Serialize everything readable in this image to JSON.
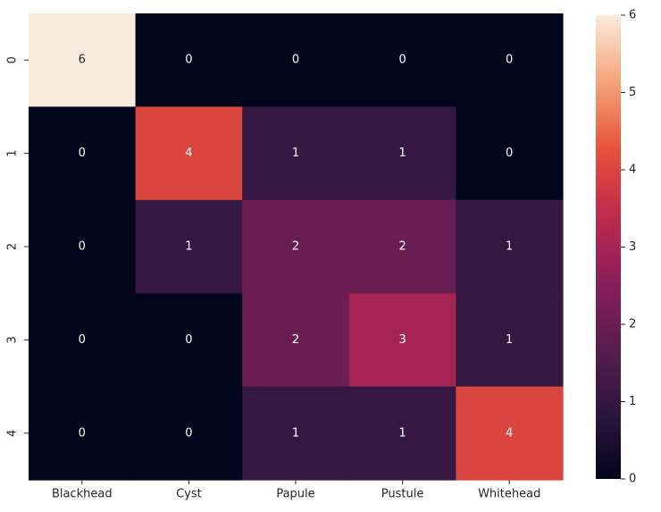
{
  "chart_data": {
    "type": "heatmap",
    "title": "",
    "xlabel": "",
    "ylabel": "",
    "x_categories": [
      "Blackhead",
      "Cyst",
      "Papule",
      "Pustule",
      "Whitehead"
    ],
    "y_categories": [
      "0",
      "1",
      "2",
      "3",
      "4"
    ],
    "values": [
      [
        6,
        0,
        0,
        0,
        0
      ],
      [
        0,
        4,
        1,
        1,
        0
      ],
      [
        0,
        1,
        2,
        2,
        1
      ],
      [
        0,
        0,
        2,
        3,
        1
      ],
      [
        0,
        0,
        1,
        1,
        4
      ]
    ],
    "colorbar": {
      "min": 0,
      "max": 6,
      "ticks": [
        "0",
        "1",
        "2",
        "3",
        "4",
        "5",
        "6"
      ]
    },
    "colormap": [
      "#03051a",
      "#2d1740",
      "#5a1d4e",
      "#8b1e5a",
      "#c02a4d",
      "#e8533a",
      "#f4a47a",
      "#faebdd"
    ]
  }
}
